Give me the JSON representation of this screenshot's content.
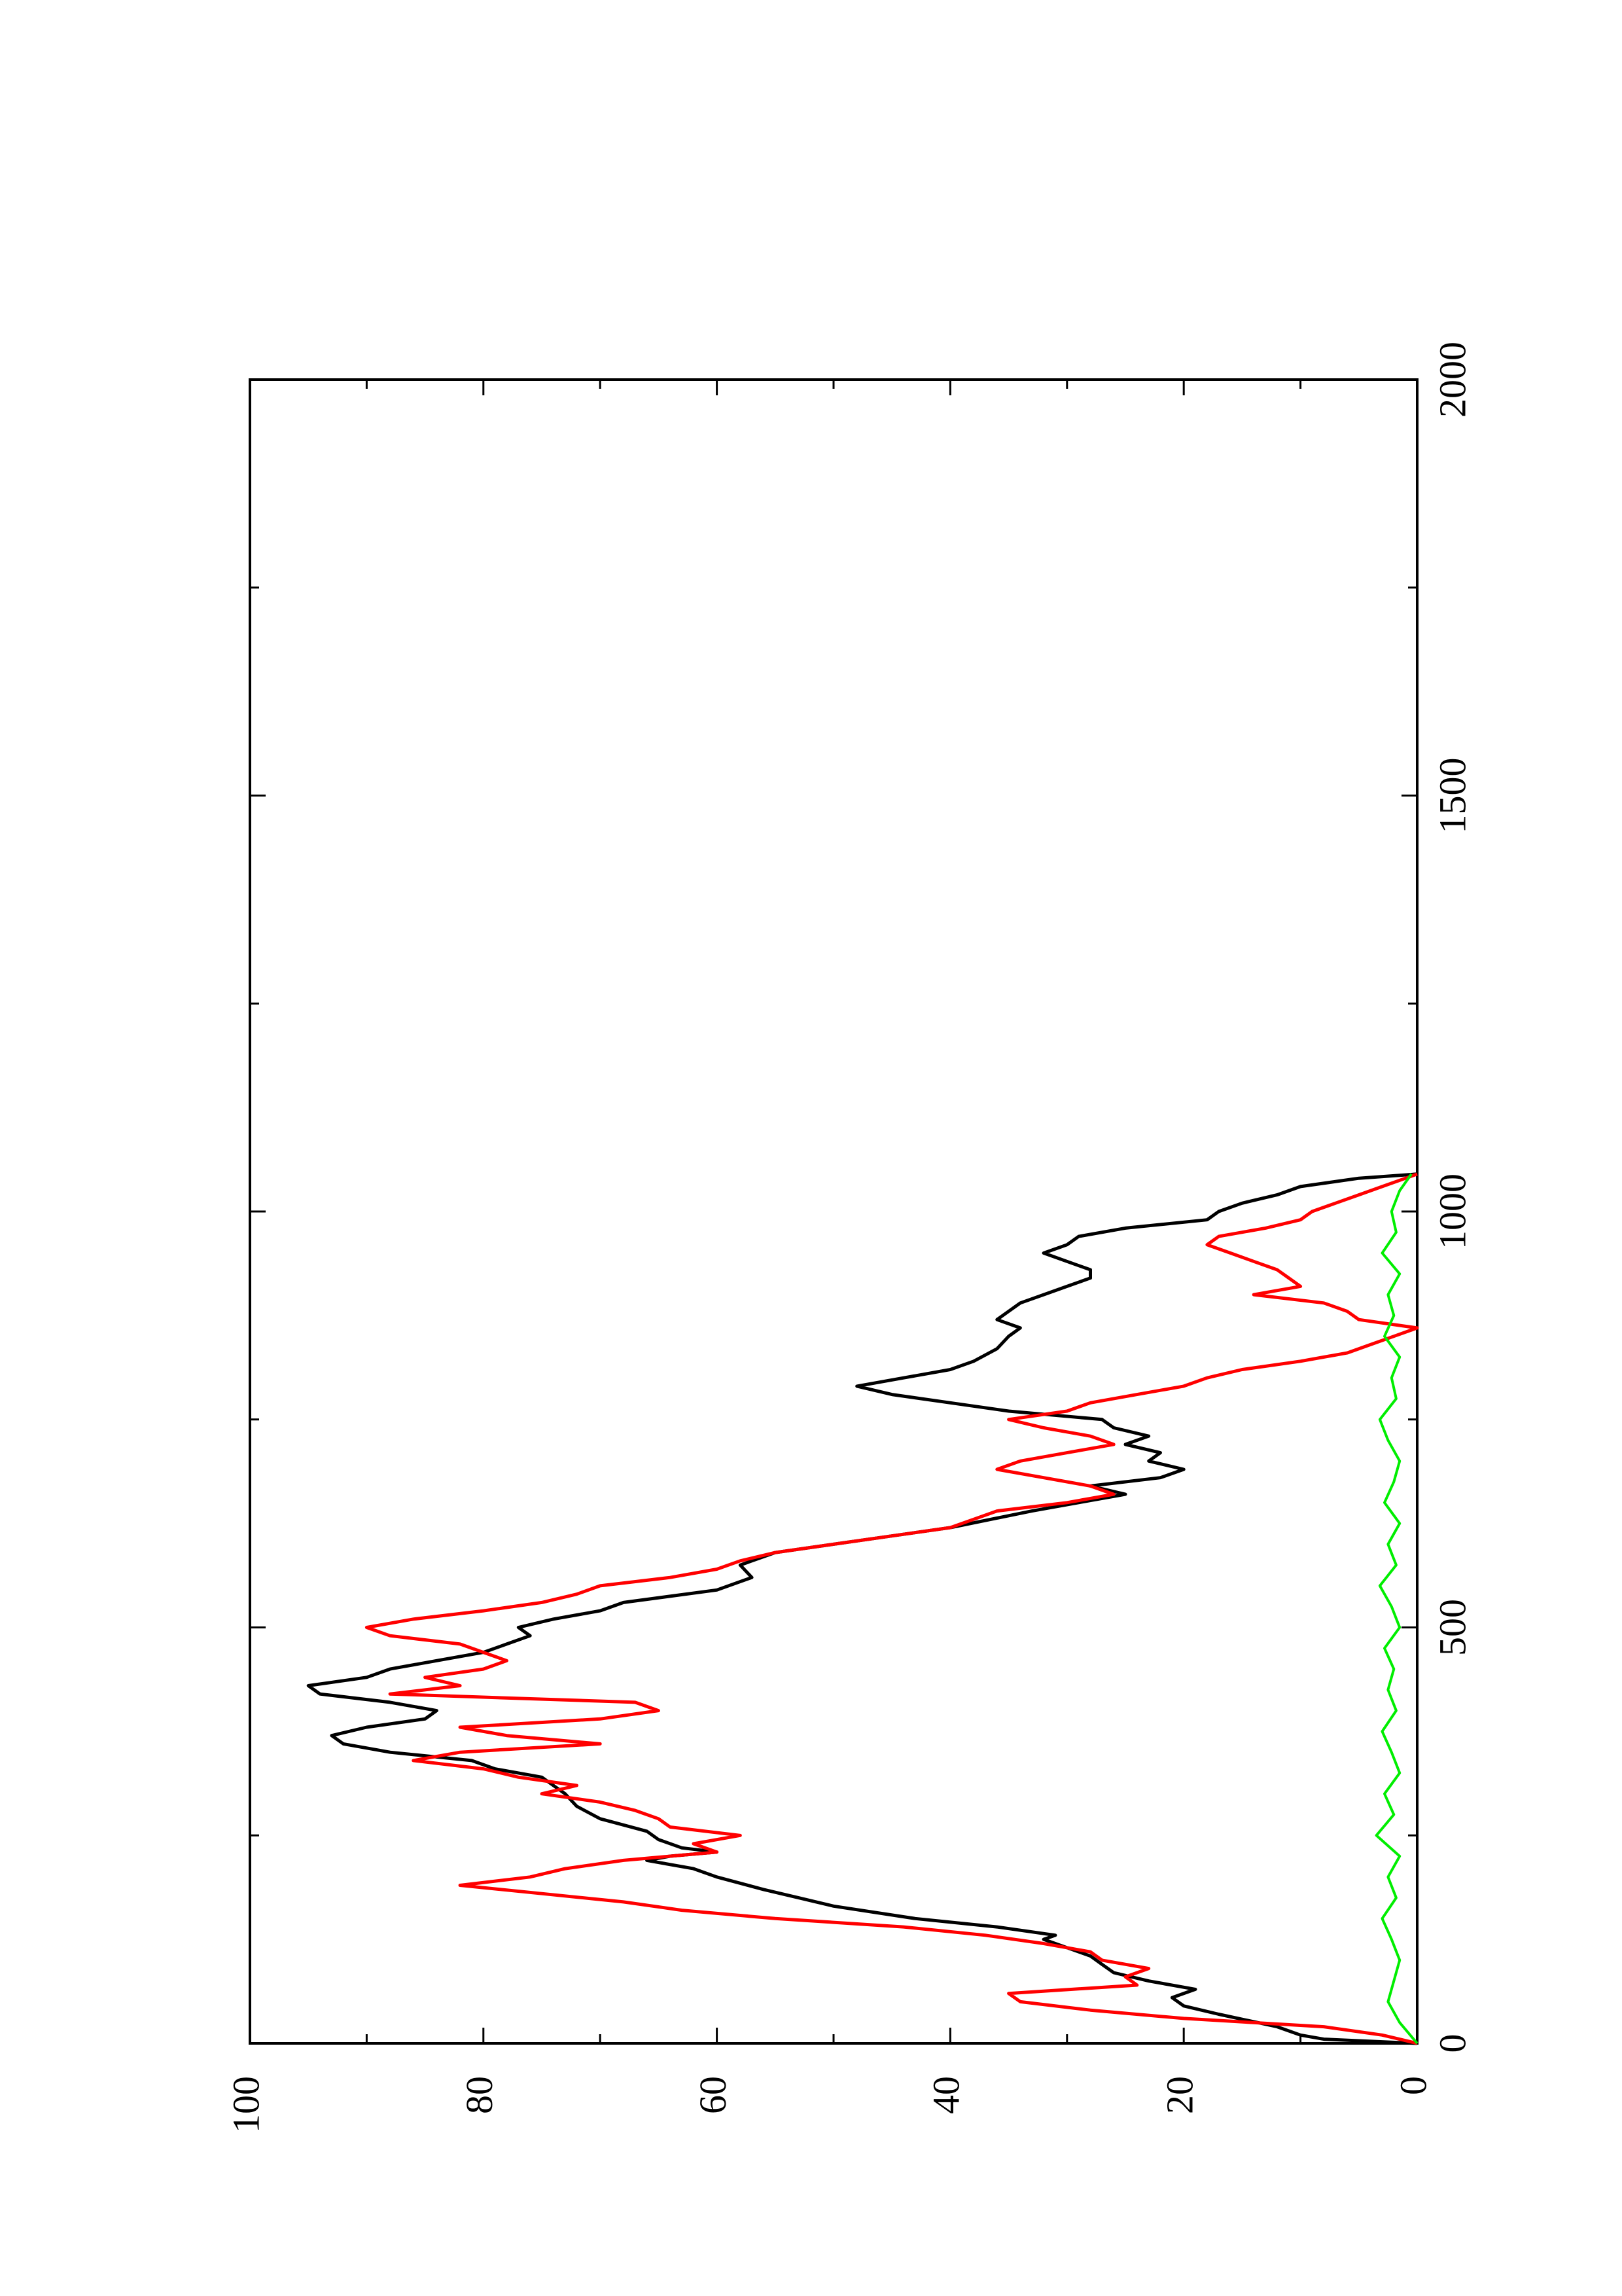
{
  "chart_data": {
    "type": "line",
    "orientation": "rotated-90-ccw",
    "xlabel": "",
    "ylabel": "",
    "xlim": [
      0,
      2000
    ],
    "ylim": [
      0,
      100
    ],
    "x_ticks": [
      0,
      500,
      1000,
      1500,
      2000
    ],
    "y_ticks": [
      0,
      20,
      40,
      60,
      80,
      100
    ],
    "x_tick_labels": [
      "0",
      "500",
      "1000",
      "1500",
      "2000"
    ],
    "y_tick_labels": [
      "0",
      "20",
      "40",
      "60",
      "80",
      "100"
    ],
    "grid": false,
    "legend": "none",
    "series": [
      {
        "color": "#000000",
        "style": "line",
        "x": [
          0,
          5,
          10,
          20,
          35,
          45,
          55,
          65,
          75,
          85,
          95,
          105,
          115,
          125,
          130,
          140,
          150,
          165,
          175,
          185,
          200,
          210,
          220,
          225,
          230,
          235,
          245,
          255,
          270,
          285,
          300,
          310,
          320,
          330,
          340,
          350,
          360,
          370,
          380,
          390,
          400,
          410,
          420,
          430,
          440,
          450,
          460,
          470,
          480,
          490,
          500,
          510,
          520,
          530,
          545,
          560,
          575,
          590,
          600,
          610,
          620,
          640,
          650,
          660,
          670,
          680,
          690,
          700,
          710,
          720,
          730,
          740,
          750,
          760,
          770,
          780,
          790,
          800,
          810,
          820,
          835,
          850,
          860,
          870,
          880,
          890,
          900,
          910,
          920,
          930,
          940,
          950,
          960,
          970,
          980,
          990,
          1000,
          1010,
          1020,
          1030,
          1040,
          1045
        ],
        "y": [
          0,
          8,
          10,
          12,
          17,
          20,
          21,
          19,
          23,
          26,
          27,
          28,
          30,
          32,
          31,
          36,
          43,
          50,
          53,
          56,
          60,
          62,
          66,
          64,
          60,
          63,
          65,
          66,
          70,
          72,
          73,
          74,
          75,
          79,
          81,
          88,
          92,
          93,
          90,
          85,
          84,
          88,
          94,
          95,
          90,
          88,
          84,
          80,
          78,
          76,
          77,
          74,
          70,
          68,
          60,
          57,
          58,
          55,
          50,
          45,
          40,
          33,
          29,
          25,
          28,
          22,
          20,
          23,
          22,
          25,
          23,
          26,
          27,
          35,
          40,
          45,
          48,
          44,
          40,
          38,
          36,
          35,
          34,
          36,
          35,
          34,
          32,
          30,
          28,
          28,
          30,
          32,
          30,
          29,
          25,
          18,
          17,
          15,
          12,
          10,
          5,
          0
        ]
      },
      {
        "color": "#ff0000",
        "style": "line",
        "x": [
          0,
          10,
          20,
          30,
          40,
          50,
          60,
          70,
          80,
          90,
          100,
          110,
          120,
          130,
          140,
          150,
          160,
          170,
          180,
          190,
          200,
          210,
          220,
          230,
          240,
          250,
          260,
          270,
          280,
          290,
          300,
          310,
          320,
          330,
          340,
          350,
          360,
          370,
          380,
          390,
          400,
          410,
          420,
          430,
          440,
          450,
          460,
          470,
          480,
          490,
          500,
          510,
          520,
          530,
          540,
          550,
          560,
          570,
          580,
          590,
          600,
          610,
          620,
          630,
          640,
          650,
          660,
          670,
          680,
          690,
          700,
          710,
          720,
          730,
          740,
          750,
          760,
          770,
          780,
          790,
          800,
          810,
          820,
          830,
          840,
          850,
          860,
          870,
          880,
          890,
          900,
          910,
          920,
          930,
          940,
          950,
          960,
          970,
          980,
          990,
          1000,
          1010,
          1020,
          1030,
          1040,
          1045
        ],
        "y": [
          0,
          3,
          8,
          20,
          28,
          34,
          35,
          24,
          25,
          23,
          27,
          28,
          32,
          37,
          44,
          55,
          63,
          68,
          75,
          82,
          76,
          73,
          68,
          60,
          62,
          58,
          64,
          65,
          67,
          70,
          75,
          72,
          77,
          80,
          86,
          82,
          70,
          78,
          82,
          70,
          65,
          67,
          88,
          82,
          85,
          80,
          78,
          80,
          82,
          88,
          90,
          86,
          80,
          75,
          72,
          70,
          64,
          60,
          58,
          55,
          50,
          45,
          40,
          38,
          36,
          30,
          26,
          28,
          32,
          36,
          34,
          30,
          26,
          28,
          32,
          35,
          30,
          28,
          24,
          20,
          18,
          15,
          10,
          6,
          4,
          2,
          0,
          5,
          6,
          8,
          14,
          10,
          11,
          12,
          14,
          16,
          18,
          17,
          13,
          10,
          9,
          7,
          5,
          3,
          1,
          0
        ]
      },
      {
        "color": "#00ee00",
        "style": "line",
        "x": [
          0,
          25,
          50,
          75,
          100,
          125,
          150,
          175,
          200,
          225,
          250,
          275,
          300,
          325,
          350,
          375,
          400,
          425,
          450,
          475,
          500,
          525,
          550,
          575,
          600,
          625,
          650,
          675,
          700,
          725,
          750,
          775,
          800,
          825,
          850,
          875,
          900,
          925,
          950,
          975,
          1000,
          1025,
          1045
        ],
        "y": [
          0,
          1.5,
          2.5,
          2,
          1.5,
          2.2,
          3,
          1.8,
          2.5,
          1.5,
          3.5,
          2,
          2.8,
          1.5,
          2.2,
          3,
          1.8,
          2.5,
          2,
          2.8,
          1.5,
          2.2,
          3.2,
          1.8,
          2.5,
          1.5,
          2.8,
          2,
          1.5,
          2.5,
          3.2,
          1.8,
          2.2,
          1.5,
          2.8,
          2,
          2.5,
          1.5,
          3,
          1.8,
          2.2,
          1.5,
          0.5
        ]
      }
    ]
  }
}
